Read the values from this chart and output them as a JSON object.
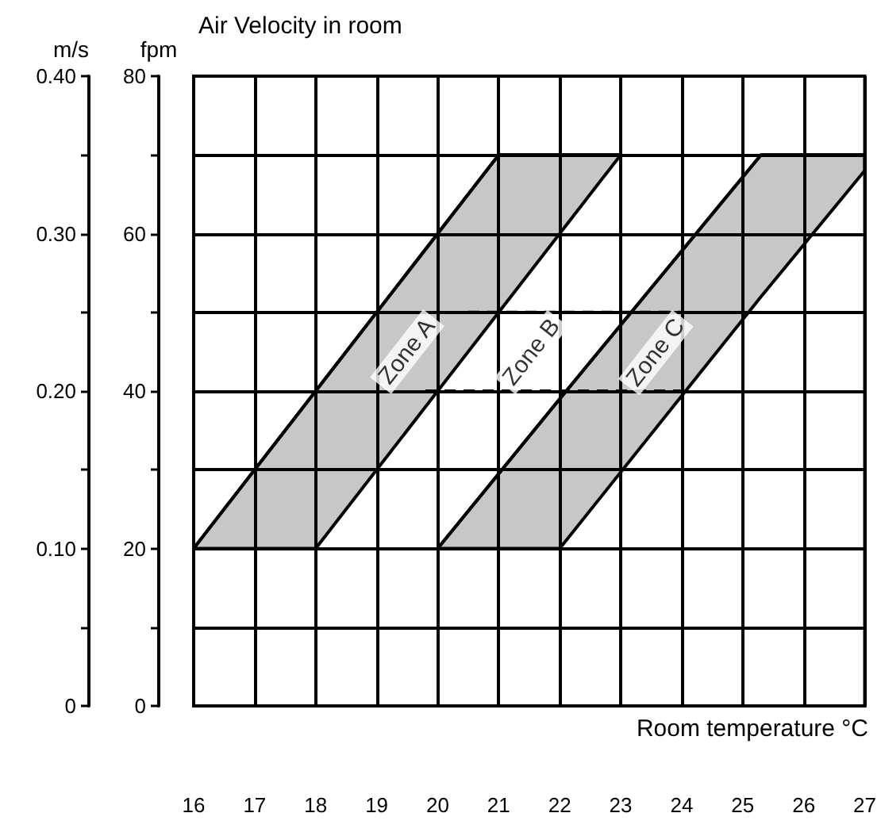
{
  "chart_data": {
    "type": "line",
    "title": "Air Velocity in room",
    "xlabel": "Room temperature °C",
    "ylabel": "fpm",
    "y2label": "m/s",
    "xlim": [
      16,
      27
    ],
    "xticks": [
      16,
      17,
      18,
      19,
      20,
      21,
      22,
      23,
      24,
      25,
      26,
      27
    ],
    "ylim": [
      0,
      80
    ],
    "yticks": [
      0,
      {
        "value": 10,
        "label": null
      },
      20,
      {
        "value": 30,
        "label": null
      },
      40,
      {
        "value": 50,
        "label": null
      },
      60,
      {
        "value": 70,
        "label": null
      },
      80
    ],
    "y2lim": [
      0,
      0.4
    ],
    "y2ticks": [
      {
        "value": 0,
        "label": "0"
      },
      {
        "value": 0.05,
        "label": null
      },
      {
        "value": 0.1,
        "label": "0.10"
      },
      {
        "value": 0.15,
        "label": null
      },
      {
        "value": 0.2,
        "label": "0.20"
      },
      {
        "value": 0.25,
        "label": null
      },
      {
        "value": 0.3,
        "label": "0.30"
      },
      {
        "value": 0.35,
        "label": null
      },
      {
        "value": 0.4,
        "label": "0.40"
      }
    ],
    "grid": true,
    "marker": "none",
    "series": [
      {
        "color": "#000000",
        "x": [
          16,
          18,
          21,
          23
        ],
        "values": [
          20,
          40,
          70,
          70
        ],
        "lower": [
          20,
          20,
          50,
          70
        ],
        "upper": [
          20,
          40,
          70,
          70
        ]
      },
      {
        "color": "#000000",
        "x": [
          20,
          22,
          25.3,
          27
        ],
        "values": [
          20,
          39,
          70,
          70
        ],
        "lower": [
          20,
          20,
          52,
          68
        ],
        "upper": [
          20,
          39,
          70,
          70
        ]
      },
      {
        "color": "#000000",
        "line_style": "dashed",
        "x": [
          20.5,
          24
        ],
        "values": [
          50,
          50
        ]
      },
      {
        "color": "#000000",
        "line_style": "dashed",
        "x": [
          19.8,
          24
        ],
        "values": [
          40,
          40
        ]
      }
    ],
    "annotations": [
      "Zone A",
      "Zone B",
      "Zone C"
    ]
  }
}
